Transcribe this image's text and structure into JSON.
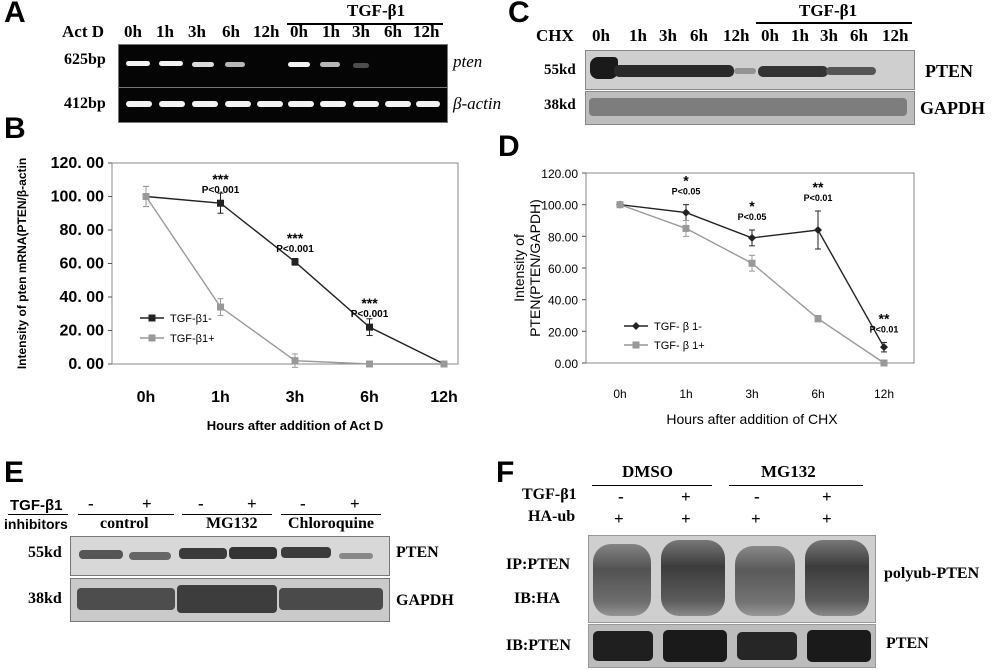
{
  "panel_a": {
    "panel_label": "A",
    "act_d_label": "Act D",
    "timepoints": [
      "0h",
      "1h",
      "3h",
      "6h",
      "12h",
      "0h",
      "1h",
      "3h",
      "6h",
      "12h"
    ],
    "treatment_label": "TGF-β1",
    "rows": [
      {
        "size": "625bp",
        "gene": "pten"
      },
      {
        "size": "412bp",
        "gene": "β-actin"
      }
    ]
  },
  "panel_c": {
    "panel_label": "C",
    "chx_label": "CHX",
    "timepoints": [
      "0h",
      "1h",
      "3h",
      "6h",
      "12h",
      "0h",
      "1h",
      "3h",
      "6h",
      "12h"
    ],
    "treatment_label": "TGF-β1",
    "rows": [
      {
        "size": "55kd",
        "protein": "PTEN"
      },
      {
        "size": "38kd",
        "protein": "GAPDH"
      }
    ]
  },
  "panel_b": {
    "panel_label": "B",
    "chart_data": {
      "type": "line",
      "categories": [
        "0h",
        "1h",
        "3h",
        "6h",
        "12h"
      ],
      "xlabel": "Hours after addition of Act D",
      "ylabel": "Intensity of pten mRNA(PTEN/β-actin",
      "ylim": [
        0,
        120
      ],
      "yticks": [
        "0. 00",
        "20. 00",
        "40. 00",
        "60. 00",
        "80. 00",
        "100. 00",
        "120. 00"
      ],
      "grid": false,
      "legend_position": "lower-left",
      "series": [
        {
          "name": "TGF-β1-",
          "values": [
            100,
            96,
            61,
            22,
            0
          ],
          "errors": [
            6,
            6,
            2,
            5,
            1
          ],
          "color": "#222222",
          "marker": "square"
        },
        {
          "name": "TGF-β1+",
          "values": [
            100,
            34,
            2,
            0,
            0
          ],
          "errors": [
            6,
            5,
            4,
            1,
            1
          ],
          "color": "#999999",
          "marker": "square"
        }
      ],
      "annotations": [
        {
          "category": "1h",
          "stars": "***",
          "p": "P<0.001",
          "value": 96
        },
        {
          "category": "3h",
          "stars": "***",
          "p": "P<0.001",
          "value": 61
        },
        {
          "category": "6h",
          "stars": "***",
          "p": "P<0.001",
          "value": 22
        }
      ]
    }
  },
  "panel_d": {
    "panel_label": "D",
    "chart_data": {
      "type": "line",
      "categories": [
        "0h",
        "1h",
        "3h",
        "6h",
        "12h"
      ],
      "xlabel": "Hours after addition of CHX",
      "ylabel_lines": [
        "Intensity of",
        "PTEN(PTEN/GAPDH)"
      ],
      "ylim": [
        0,
        120
      ],
      "yticks": [
        "0.00",
        "20.00",
        "40.00",
        "60.00",
        "80.00",
        "100.00",
        "120.00"
      ],
      "grid": false,
      "legend_position": "lower-left",
      "series": [
        {
          "name": "TGF- β 1-",
          "values": [
            100,
            95,
            79,
            84,
            10
          ],
          "errors": [
            1,
            5,
            5,
            12,
            3
          ],
          "color": "#222222",
          "marker": "diamond"
        },
        {
          "name": "TGF- β 1+",
          "values": [
            100,
            85,
            63,
            28,
            0
          ],
          "errors": [
            1,
            5,
            5,
            2,
            1
          ],
          "color": "#999999",
          "marker": "square"
        }
      ],
      "annotations": [
        {
          "category": "1h",
          "stars": "*",
          "p": "P<0.05",
          "value": 100
        },
        {
          "category": "3h",
          "stars": "*",
          "p": "P<0.05",
          "value": 84
        },
        {
          "category": "6h",
          "stars": "**",
          "p": "P<0.01",
          "value": 96
        },
        {
          "category": "12h",
          "stars": "**",
          "p": "P<0.01",
          "value": 13
        }
      ]
    }
  },
  "panel_e": {
    "panel_label": "E",
    "tgf_label": "TGF-β1",
    "inhibitors_label": "inhibitors",
    "signs": [
      "-",
      "+",
      "-",
      "+",
      "-",
      "+"
    ],
    "groups": [
      "control",
      "MG132",
      "Chloroquine"
    ],
    "rows": [
      {
        "size": "55kd",
        "protein": "PTEN"
      },
      {
        "size": "38kd",
        "protein": "GAPDH"
      }
    ]
  },
  "panel_f": {
    "panel_label": "F",
    "groups": [
      "DMSO",
      "MG132"
    ],
    "tgf_label": "TGF-β1",
    "tgf_signs": [
      "-",
      "+",
      "-",
      "+"
    ],
    "ha_label": "HA-ub",
    "ha_signs": [
      "+",
      "+",
      "+",
      "+"
    ],
    "ip_label": "IP:PTEN",
    "ib_ha_label": "IB:HA",
    "ib_pten_label": "IB:PTEN",
    "polyub_label": "polyub-PTEN",
    "pten_label": "PTEN"
  }
}
